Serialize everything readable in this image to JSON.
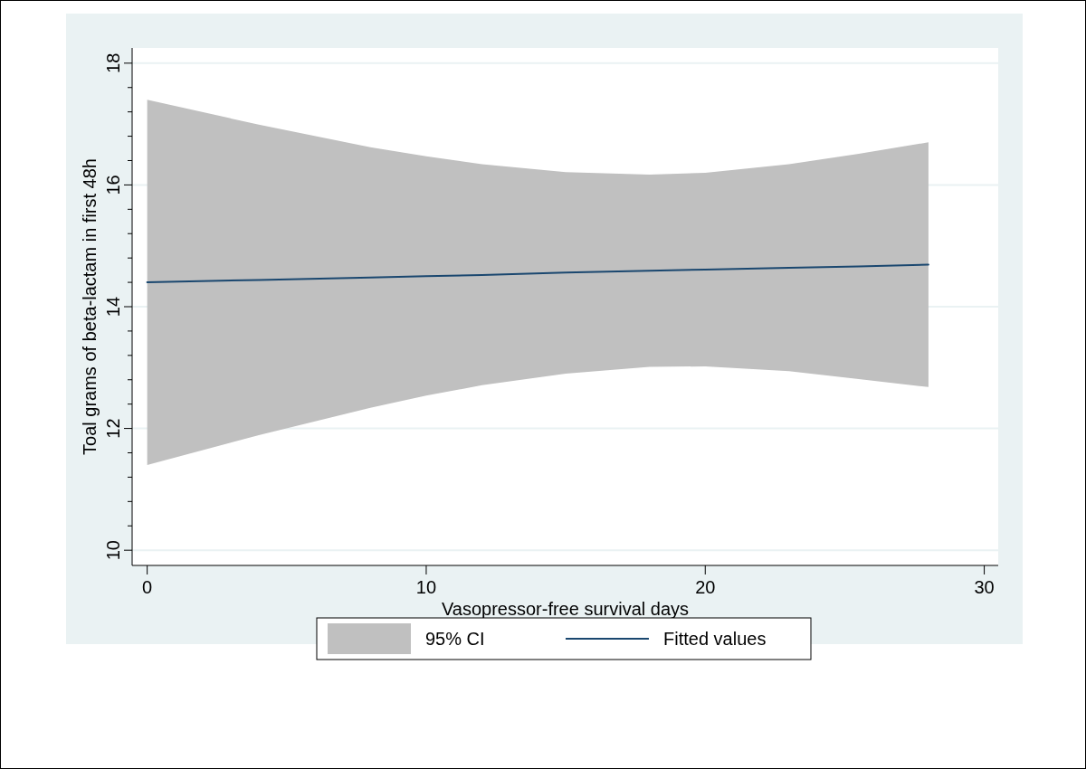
{
  "chart_data": {
    "type": "line",
    "xlabel": "Vasopressor-free survival days",
    "ylabel": "Toal grams of beta-lactam in first 48h",
    "xlim": [
      -0.54,
      30.5
    ],
    "xticks": [
      0,
      10,
      20,
      30
    ],
    "ylim": [
      9.75,
      18.25
    ],
    "yticks": [
      10,
      {
        "value": 10.4,
        "label": null
      },
      {
        "value": 10.8,
        "label": null
      },
      {
        "value": 11.2,
        "label": null
      },
      {
        "value": 11.6,
        "label": null
      },
      12,
      {
        "value": 12.4,
        "label": null
      },
      {
        "value": 12.8,
        "label": null
      },
      {
        "value": 13.2,
        "label": null
      },
      {
        "value": 13.6,
        "label": null
      },
      14,
      {
        "value": 14.4,
        "label": null
      },
      {
        "value": 14.8,
        "label": null
      },
      {
        "value": 15.2,
        "label": null
      },
      {
        "value": 15.6,
        "label": null
      },
      16,
      {
        "value": 16.4,
        "label": null
      },
      {
        "value": 16.8,
        "label": null
      },
      {
        "value": 17.2,
        "label": null
      },
      {
        "value": 17.6,
        "label": null
      },
      18
    ],
    "grid": "y",
    "legend": "bottom",
    "annotations": [
      "95% CI"
    ],
    "series": [
      {
        "name": "Fitted values",
        "color": "#1a476f",
        "x": [
          0,
          4,
          8,
          10,
          12,
          15,
          18,
          20,
          23,
          25.5,
          28
        ],
        "values": [
          14.4,
          14.44,
          14.48,
          14.5,
          14.52,
          14.56,
          14.59,
          14.61,
          14.64,
          14.66,
          14.69
        ],
        "lower": [
          11.4,
          11.89,
          12.34,
          12.54,
          12.71,
          12.9,
          13.01,
          13.02,
          12.94,
          12.81,
          12.68
        ],
        "upper": [
          17.4,
          16.99,
          16.62,
          16.47,
          16.34,
          16.21,
          16.17,
          16.2,
          16.34,
          16.51,
          16.7
        ]
      }
    ]
  }
}
